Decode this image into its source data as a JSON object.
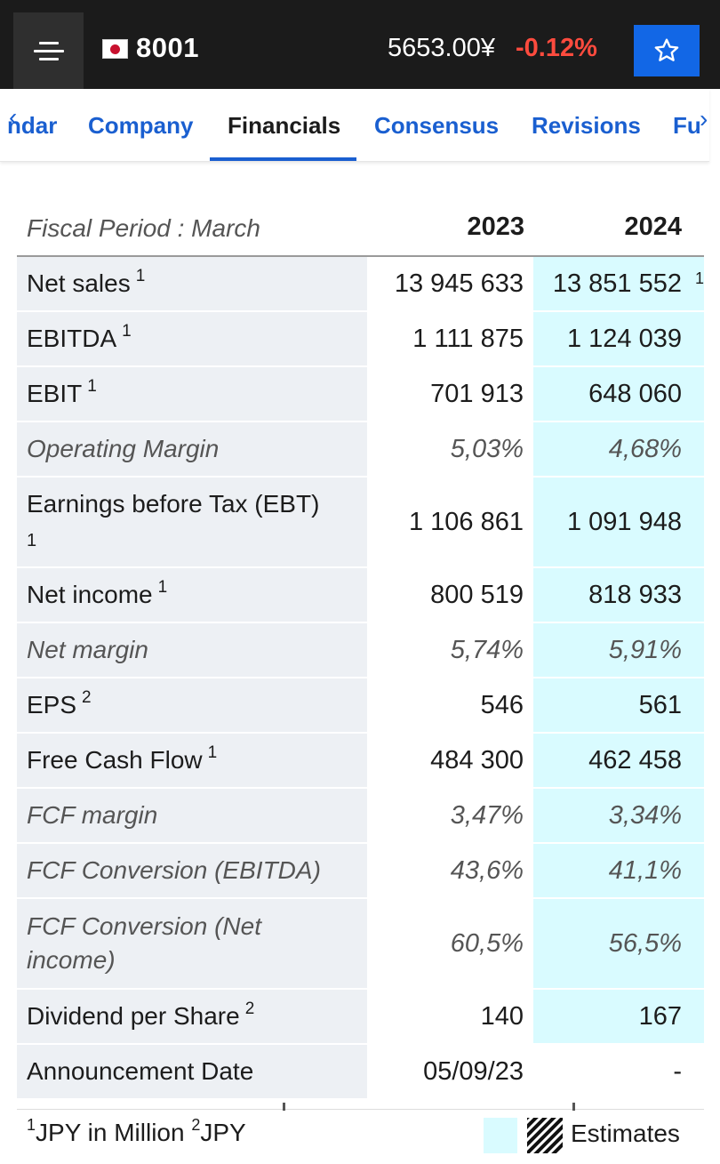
{
  "header": {
    "ticker": "8001",
    "price": "5653.00¥",
    "change": "-0.12%",
    "colors": {
      "bar": "#1b1b1b",
      "change": "#ff4b3e",
      "star_button": "#1267e6"
    }
  },
  "tabs": {
    "items": [
      {
        "label": "ndar"
      },
      {
        "label": "Company"
      },
      {
        "label": "Financials",
        "active": true
      },
      {
        "label": "Consensus"
      },
      {
        "label": "Revisions"
      },
      {
        "label": "Fu"
      }
    ]
  },
  "table": {
    "period_label": "Fiscal Period : March",
    "years": [
      "2023",
      "2024"
    ],
    "rows": [
      {
        "label": "Net sales",
        "sup": "1",
        "v2023": "13 945 633",
        "v2024": "13 851 552"
      },
      {
        "label": "EBITDA",
        "sup": "1",
        "v2023": "1 111 875",
        "v2024": "1 124 039"
      },
      {
        "label": "EBIT",
        "sup": "1",
        "v2023": "701 913",
        "v2024": "648 060"
      },
      {
        "label": "Operating Margin",
        "v2023": "5,03%",
        "v2024": "4,68%"
      },
      {
        "label": "Earnings before Tax (EBT)",
        "sup": "1",
        "v2023": "1 106 861",
        "v2024": "1 091 948"
      },
      {
        "label": "Net income",
        "sup": "1",
        "v2023": "800 519",
        "v2024": "818 933"
      },
      {
        "label": "Net margin",
        "v2023": "5,74%",
        "v2024": "5,91%"
      },
      {
        "label": "EPS",
        "sup": "2",
        "v2023": "546",
        "v2024": "561"
      },
      {
        "label": "Free Cash Flow",
        "sup": "1",
        "v2023": "484 300",
        "v2024": "462 458"
      },
      {
        "label": "FCF margin",
        "v2023": "3,47%",
        "v2024": "3,34%"
      },
      {
        "label": "FCF Conversion (EBITDA)",
        "v2023": "43,6%",
        "v2024": "41,1%"
      },
      {
        "label": "FCF Conversion (Net income)",
        "v2023": "60,5%",
        "v2024": "56,5%"
      },
      {
        "label": "Dividend per Share",
        "sup": "2",
        "v2023": "140",
        "v2024": "167"
      },
      {
        "label": "Announcement Date",
        "v2023": "05/09/23",
        "v2024": "-"
      }
    ],
    "trailing_mark": "1"
  },
  "footer": {
    "note1_sup": "1",
    "note1": "JPY in Million",
    "note2_sup": "2",
    "note2": "JPY",
    "legend_label": "Estimates",
    "estimate_color": "#d9fbff"
  }
}
